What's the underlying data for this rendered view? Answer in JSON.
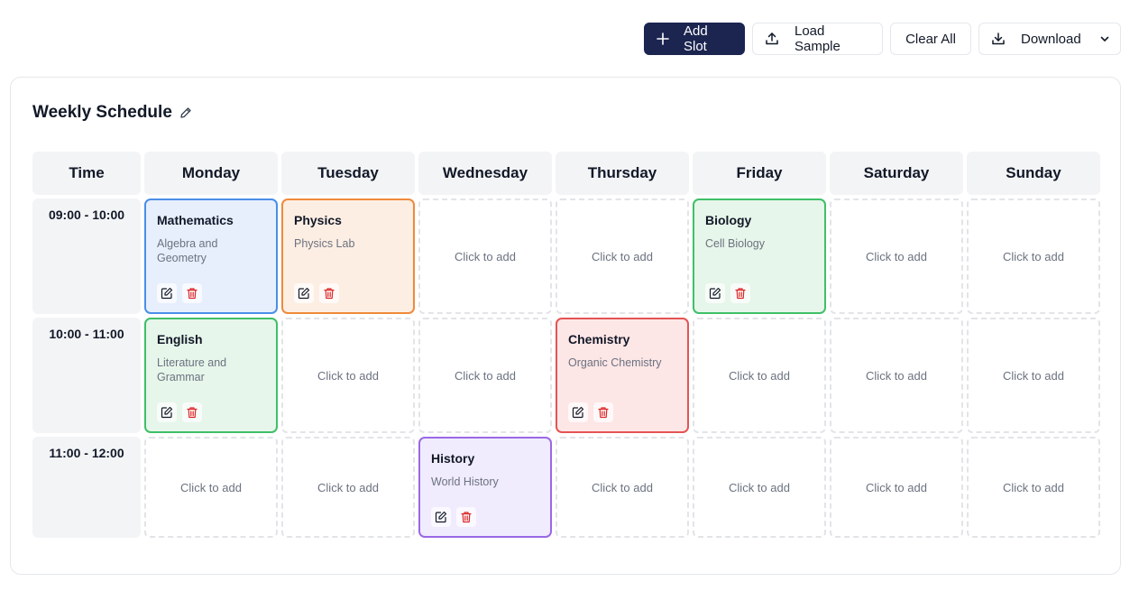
{
  "toolbar": {
    "add_label": "Add Slot",
    "load_label": "Load Sample",
    "clear_label": "Clear All",
    "download_label": "Download"
  },
  "schedule": {
    "title": "Weekly Schedule",
    "time_header": "Time",
    "days": [
      "Monday",
      "Tuesday",
      "Wednesday",
      "Thursday",
      "Friday",
      "Saturday",
      "Sunday"
    ],
    "times": [
      "09:00 - 10:00",
      "10:00 - 11:00",
      "11:00 - 12:00"
    ],
    "empty_label": "Click to add",
    "slots": {
      "mon_0900": {
        "subject": "Mathematics",
        "detail": "Algebra and Geometry",
        "color": "#4a8fe7"
      },
      "tue_0900": {
        "subject": "Physics",
        "detail": "Physics Lab",
        "color": "#ef8a3b"
      },
      "fri_0900": {
        "subject": "Biology",
        "detail": "Cell Biology",
        "color": "#3fbf68"
      },
      "mon_1000": {
        "subject": "English",
        "detail": "Literature and Grammar",
        "color": "#3fbf68"
      },
      "thu_1000": {
        "subject": "Chemistry",
        "detail": "Organic Chemistry",
        "color": "#e45454"
      },
      "wed_1100": {
        "subject": "History",
        "detail": "World History",
        "color": "#9a68e6"
      }
    }
  },
  "colors": {
    "primary": "#1b2550",
    "delete": "#dc2626"
  },
  "icons": {
    "add": "plus-icon",
    "load": "upload-icon",
    "download": "download-icon",
    "dropdown": "chevron-down-icon",
    "edit": "edit-icon",
    "delete": "trash-icon",
    "title_edit": "pencil-icon"
  }
}
